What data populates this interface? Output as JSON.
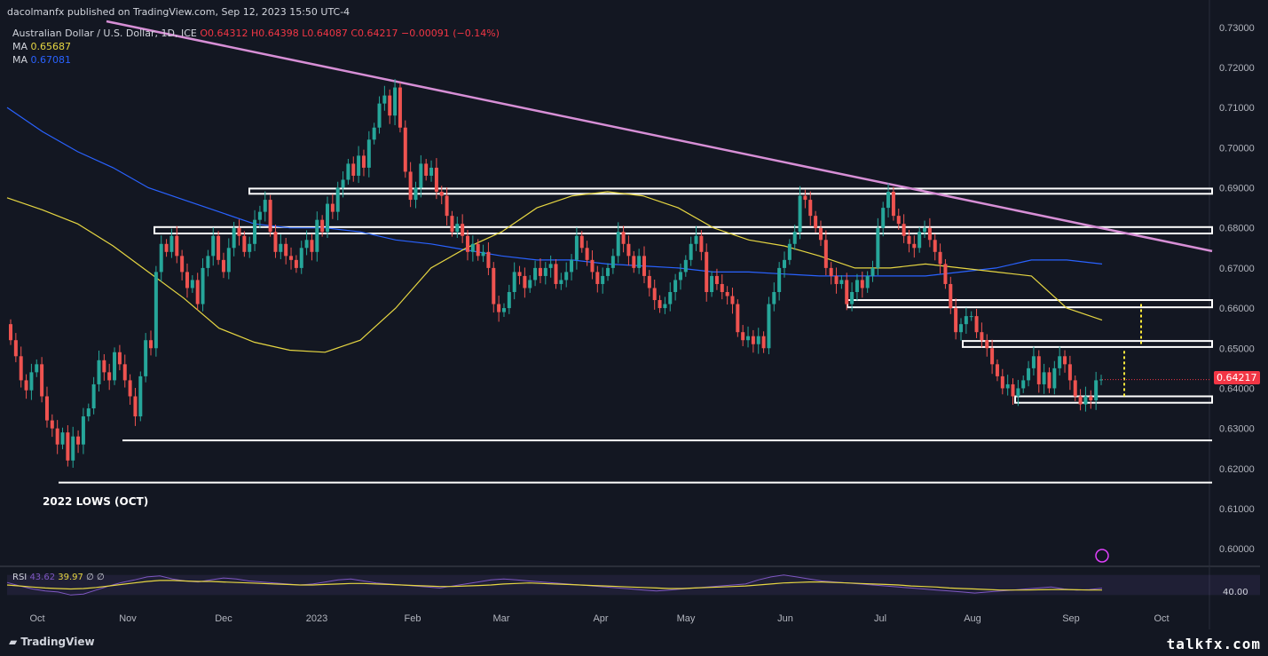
{
  "header": {
    "published": "dacolmanfx published on TradingView.com, Sep 12, 2023 15:50 UTC-4",
    "symbol": "Australian Dollar / U.S. Dollar, 1D, ICE",
    "ohlc": "O0.64312  H0.64398  L0.64087  C0.64217  −0.00091 (−0.14%)",
    "ma1_label": "MA",
    "ma1_value": "0.65687",
    "ma2_label": "MA",
    "ma2_value": "0.67081"
  },
  "annotation": "2022 LOWS (OCT)",
  "last_price": "0.64217",
  "rsi": {
    "label": "RSI",
    "value1": "43.62",
    "value2": "39.97",
    "extra": "∅ ∅",
    "axis_value": "40.00"
  },
  "footer": {
    "brand": "TradingView",
    "watermark": "talkfx.com"
  },
  "colors": {
    "bg": "#131722",
    "up": "#26a69a",
    "down": "#ef5350",
    "ma_fast": "#e6d642",
    "ma_slow": "#2962ff",
    "trendline": "#d78fd6",
    "rsi_line": "#7e57c2",
    "rsi_ma": "#e6d642"
  },
  "chart_data": {
    "type": "candlestick",
    "title": "Australian Dollar / U.S. Dollar, 1D, ICE",
    "y_ticks": [
      "0.73000",
      "0.72000",
      "0.71000",
      "0.70000",
      "0.69000",
      "0.68000",
      "0.67000",
      "0.66000",
      "0.65000",
      "0.64000",
      "0.63000",
      "0.62000",
      "0.61000",
      "0.60000"
    ],
    "x_ticks": [
      "Oct",
      "Nov",
      "Dec",
      "2023",
      "Feb",
      "Mar",
      "Apr",
      "May",
      "Jun",
      "Jul",
      "Aug",
      "Sep",
      "Oct"
    ],
    "ylim": [
      0.5965,
      0.7315
    ],
    "closes": [
      0.652,
      0.648,
      0.642,
      0.6395,
      0.644,
      0.646,
      0.638,
      0.632,
      0.63,
      0.626,
      0.629,
      0.622,
      0.628,
      0.626,
      0.633,
      0.635,
      0.641,
      0.647,
      0.644,
      0.642,
      0.649,
      0.646,
      0.642,
      0.638,
      0.633,
      0.643,
      0.652,
      0.65,
      0.669,
      0.676,
      0.674,
      0.678,
      0.673,
      0.669,
      0.665,
      0.667,
      0.661,
      0.67,
      0.673,
      0.678,
      0.672,
      0.669,
      0.675,
      0.68,
      0.678,
      0.674,
      0.676,
      0.682,
      0.684,
      0.687,
      0.679,
      0.674,
      0.676,
      0.673,
      0.672,
      0.67,
      0.675,
      0.677,
      0.674,
      0.682,
      0.679,
      0.686,
      0.684,
      0.69,
      0.692,
      0.696,
      0.693,
      0.698,
      0.695,
      0.702,
      0.705,
      0.711,
      0.713,
      0.708,
      0.715,
      0.705,
      0.694,
      0.687,
      0.69,
      0.696,
      0.693,
      0.695,
      0.689,
      0.688,
      0.683,
      0.679,
      0.681,
      0.678,
      0.674,
      0.676,
      0.673,
      0.674,
      0.67,
      0.661,
      0.659,
      0.66,
      0.664,
      0.669,
      0.668,
      0.665,
      0.667,
      0.67,
      0.668,
      0.67,
      0.671,
      0.666,
      0.667,
      0.669,
      0.672,
      0.678,
      0.675,
      0.672,
      0.669,
      0.666,
      0.668,
      0.67,
      0.673,
      0.679,
      0.676,
      0.673,
      0.67,
      0.673,
      0.668,
      0.665,
      0.662,
      0.66,
      0.661,
      0.664,
      0.667,
      0.669,
      0.672,
      0.676,
      0.678,
      0.674,
      0.664,
      0.668,
      0.666,
      0.664,
      0.663,
      0.661,
      0.654,
      0.652,
      0.653,
      0.651,
      0.653,
      0.65,
      0.661,
      0.664,
      0.67,
      0.672,
      0.676,
      0.679,
      0.688,
      0.687,
      0.683,
      0.68,
      0.677,
      0.67,
      0.668,
      0.666,
      0.667,
      0.661,
      0.664,
      0.667,
      0.665,
      0.668,
      0.67,
      0.68,
      0.685,
      0.689,
      0.683,
      0.681,
      0.678,
      0.676,
      0.675,
      0.679,
      0.68,
      0.677,
      0.674,
      0.671,
      0.666,
      0.66,
      0.654,
      0.656,
      0.658,
      0.658,
      0.654,
      0.652,
      0.65,
      0.646,
      0.643,
      0.64,
      0.641,
      0.638,
      0.64,
      0.642,
      0.645,
      0.648,
      0.641,
      0.644,
      0.64,
      0.645,
      0.648,
      0.646,
      0.642,
      0.638,
      0.636,
      0.638,
      0.637,
      0.642,
      0.6422
    ],
    "ma_fast": [
      0.6875,
      0.6845,
      0.681,
      0.6755,
      0.669,
      0.6625,
      0.655,
      0.6515,
      0.6495,
      0.649,
      0.652,
      0.66,
      0.67,
      0.675,
      0.679,
      0.685,
      0.688,
      0.689,
      0.688,
      0.685,
      0.68,
      0.677,
      0.6755,
      0.673,
      0.67,
      0.67,
      0.671,
      0.67,
      0.669,
      0.668,
      0.66,
      0.657
    ],
    "ma_slow": [
      0.71,
      0.704,
      0.699,
      0.695,
      0.69,
      0.687,
      0.684,
      0.681,
      0.68,
      0.68,
      0.679,
      0.677,
      0.676,
      0.6745,
      0.673,
      0.672,
      0.672,
      0.671,
      0.6705,
      0.67,
      0.669,
      0.669,
      0.6685,
      0.668,
      0.668,
      0.668,
      0.668,
      0.669,
      0.67,
      0.672,
      0.672,
      0.671
    ],
    "trendline": [
      [
        0.7315,
        0.6742
      ]
    ],
    "horizontal_zones": [
      [
        0.6885,
        0.6898
      ],
      [
        0.6786,
        0.6802
      ],
      [
        0.6602,
        0.662
      ],
      [
        0.6503,
        0.6518
      ],
      [
        0.6364,
        0.638
      ]
    ],
    "horizontal_lines": [
      0.627,
      0.6165
    ],
    "rsi": [
      55,
      48,
      42,
      38,
      36,
      30,
      32,
      40,
      48,
      55,
      60,
      66,
      68,
      62,
      58,
      56,
      60,
      64,
      62,
      58,
      56,
      54,
      52,
      50,
      52,
      56,
      60,
      62,
      58,
      54,
      52,
      50,
      48,
      46,
      44,
      48,
      52,
      56,
      60,
      62,
      60,
      58,
      56,
      54,
      52,
      50,
      48,
      46,
      44,
      42,
      40,
      38,
      40,
      42,
      44,
      46,
      48,
      50,
      52,
      60,
      66,
      70,
      66,
      62,
      58,
      56,
      54,
      52,
      50,
      48,
      46,
      44,
      42,
      40,
      38,
      36,
      34,
      36,
      38,
      40,
      42,
      44,
      46,
      42,
      40,
      41,
      43.62
    ],
    "rsi_ma": [
      50,
      48,
      46,
      44,
      43,
      42,
      43,
      45,
      48,
      51,
      54,
      57,
      59,
      59,
      58,
      57,
      57,
      56,
      55,
      54,
      53,
      52,
      51,
      50,
      50,
      51,
      52,
      53,
      53,
      52,
      51,
      50,
      49,
      48,
      47,
      47,
      48,
      49,
      50,
      52,
      53,
      54,
      53,
      52,
      51,
      50,
      49,
      48,
      47,
      46,
      45,
      44,
      43,
      43,
      44,
      45,
      46,
      47,
      48,
      50,
      52,
      54,
      55,
      56,
      56,
      55,
      54,
      53,
      52,
      51,
      50,
      48,
      47,
      46,
      44,
      43,
      42,
      41,
      40,
      40,
      40,
      40.5,
      41,
      41,
      40.5,
      40,
      39.97
    ]
  }
}
